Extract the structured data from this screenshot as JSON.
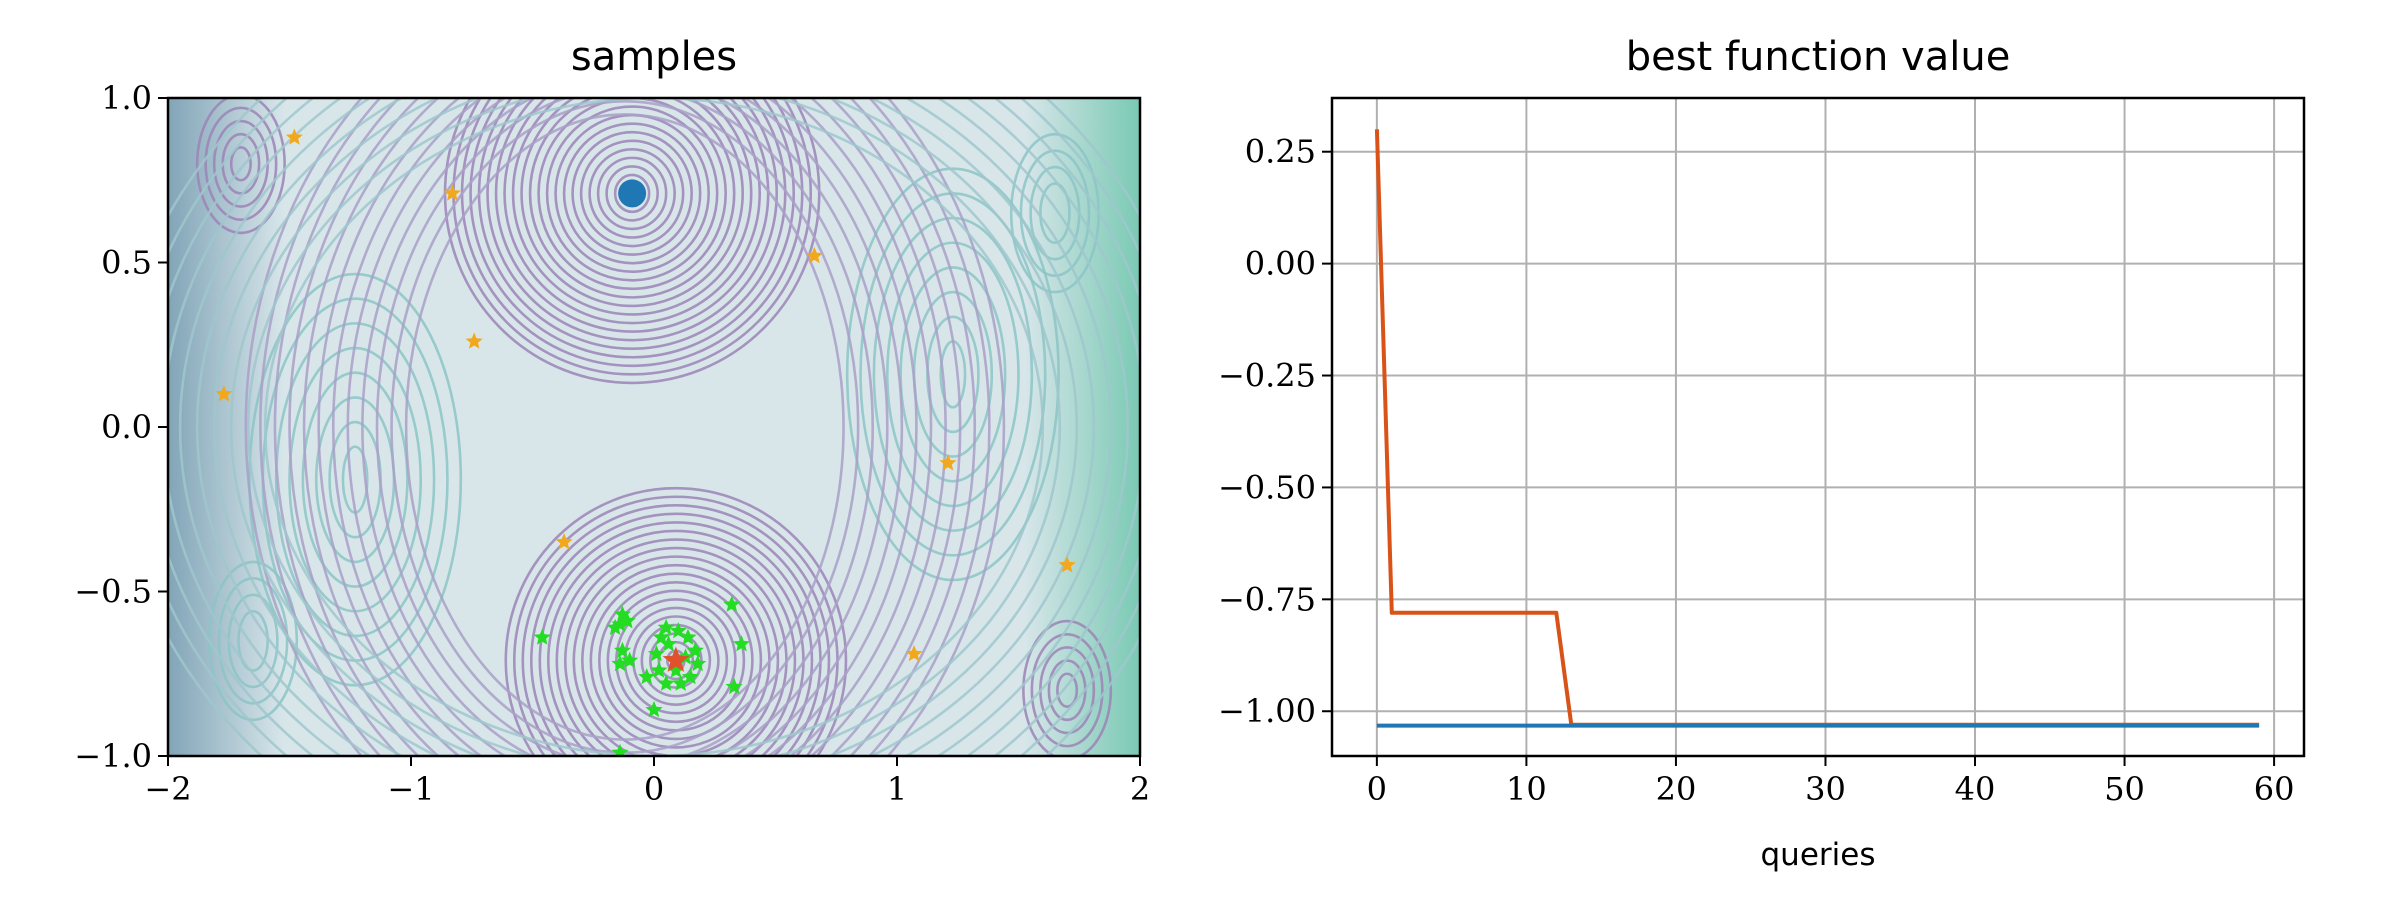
{
  "chart_data": [
    {
      "type": "contour",
      "title": "samples",
      "xlim": [
        -2,
        2
      ],
      "ylim": [
        -1,
        1
      ],
      "xticks": [
        -2,
        -1,
        0,
        1,
        2
      ],
      "xtick_labels": [
        "−2",
        "−1",
        "0",
        "1",
        "2"
      ],
      "yticks": [
        -1.0,
        -0.5,
        0.0,
        0.5,
        1.0
      ],
      "ytick_labels": [
        "−1.0",
        "−0.5",
        "0.0",
        "0.5",
        "1.0"
      ],
      "colormap": "viridis",
      "series": [
        {
          "marker": "star",
          "color": "#f2a81d",
          "points": [
            [
              -1.48,
              0.88
            ],
            [
              -0.83,
              0.71
            ],
            [
              -0.74,
              0.26
            ],
            [
              0.66,
              0.52
            ],
            [
              -1.77,
              0.1
            ],
            [
              1.21,
              -0.11
            ],
            [
              -0.37,
              -0.35
            ],
            [
              1.7,
              -0.42
            ],
            [
              1.07,
              -0.69
            ]
          ]
        },
        {
          "marker": "star",
          "color": "#22dd22",
          "points": [
            [
              -0.13,
              -0.57
            ],
            [
              -0.14,
              -0.6
            ],
            [
              -0.16,
              -0.61
            ],
            [
              -0.11,
              -0.59
            ],
            [
              -0.46,
              -0.64
            ],
            [
              -0.13,
              -0.68
            ],
            [
              -0.1,
              -0.71
            ],
            [
              -0.14,
              -0.72
            ],
            [
              -0.03,
              -0.76
            ],
            [
              0.0,
              -0.86
            ],
            [
              -0.14,
              -0.99
            ],
            [
              0.03,
              -0.64
            ],
            [
              0.05,
              -0.61
            ],
            [
              0.1,
              -0.62
            ],
            [
              0.14,
              -0.64
            ],
            [
              0.17,
              -0.68
            ],
            [
              0.18,
              -0.72
            ],
            [
              0.15,
              -0.76
            ],
            [
              0.11,
              -0.78
            ],
            [
              0.05,
              -0.78
            ],
            [
              0.02,
              -0.74
            ],
            [
              0.01,
              -0.69
            ],
            [
              0.06,
              -0.66
            ],
            [
              0.13,
              -0.7
            ],
            [
              0.09,
              -0.74
            ],
            [
              0.32,
              -0.54
            ],
            [
              0.36,
              -0.66
            ],
            [
              0.33,
              -0.79
            ]
          ]
        },
        {
          "marker": "circle",
          "color": "#1f77b4",
          "points": [
            [
              -0.09,
              0.71
            ]
          ]
        },
        {
          "marker": "star",
          "color": "#e0522b",
          "points": [
            [
              0.09,
              -0.71
            ]
          ]
        }
      ]
    },
    {
      "type": "line",
      "title": "best function value",
      "xlabel": "queries",
      "ylabel": "",
      "xlim": [
        -3,
        62
      ],
      "ylim": [
        -1.1,
        0.37
      ],
      "xticks": [
        0,
        10,
        20,
        30,
        40,
        50,
        60
      ],
      "xtick_labels": [
        "0",
        "10",
        "20",
        "30",
        "40",
        "50",
        "60"
      ],
      "yticks": [
        -1.0,
        -0.75,
        -0.5,
        -0.25,
        0.0,
        0.25
      ],
      "ytick_labels": [
        "−1.00",
        "−0.75",
        "−0.50",
        "−0.25",
        "0.00",
        "0.25"
      ],
      "grid": true,
      "series": [
        {
          "color": "#d95319",
          "x": [
            0,
            1,
            12,
            13,
            59
          ],
          "y": [
            0.3,
            -0.78,
            -0.78,
            -1.03,
            -1.03
          ]
        },
        {
          "color": "#1f77b4",
          "x": [
            0,
            59
          ],
          "y": [
            -1.032,
            -1.032
          ]
        }
      ]
    }
  ]
}
